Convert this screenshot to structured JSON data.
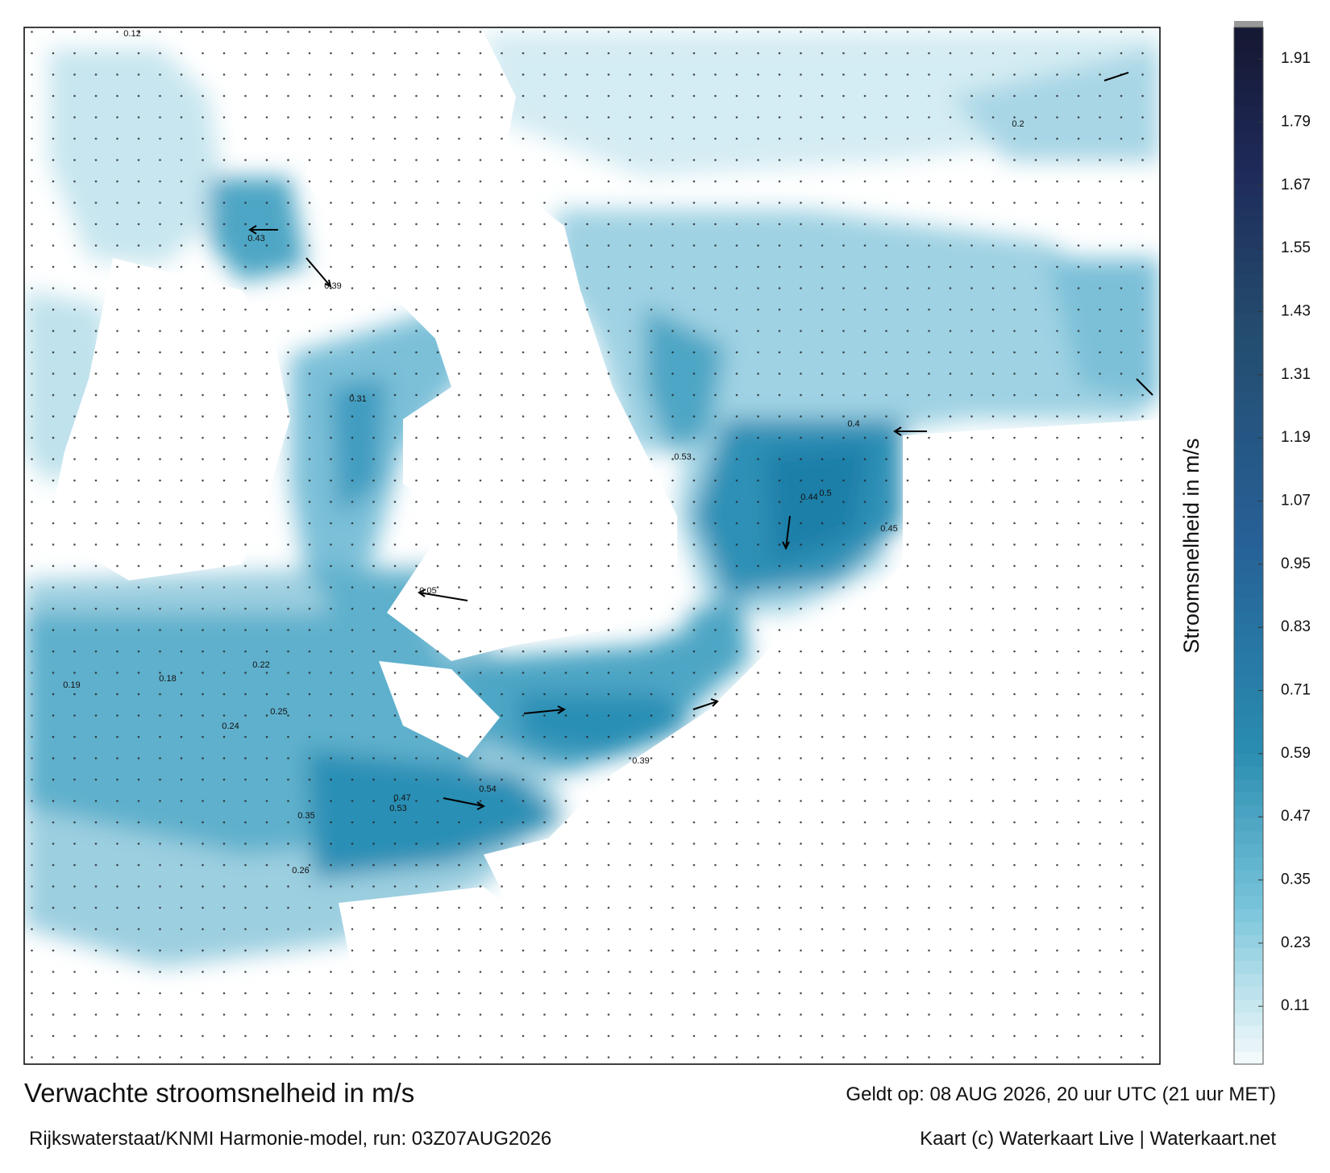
{
  "title": "Verwachte stroomsnelheid in m/s",
  "valid_time": "Geldt op: 08 AUG 2026, 20 uur UTC (21 uur MET)",
  "source": "Rijkswaterstaat/KNMI Harmonie-model, run: 03Z07AUG2026",
  "credit": "Kaart (c) Waterkaart Live | Waterkaart.net",
  "colorbar": {
    "label": "Stroomsnelheid in m/s",
    "clim": [
      0,
      1.97
    ],
    "ticks": [
      0.11,
      0.23,
      0.35,
      0.47,
      0.59,
      0.71,
      0.83,
      0.95,
      1.07,
      1.19,
      1.31,
      1.43,
      1.55,
      1.67,
      1.79,
      1.91
    ]
  },
  "map_labels": [
    0.43,
    0.39,
    0.35,
    0.31,
    0.53,
    0.54,
    0.47,
    0.53,
    0.4,
    0.44,
    0.5,
    0.45,
    0.39,
    0.25,
    0.26,
    0.24,
    0.22,
    0.18,
    0.19,
    0.12,
    0.2,
    0.05
  ]
}
